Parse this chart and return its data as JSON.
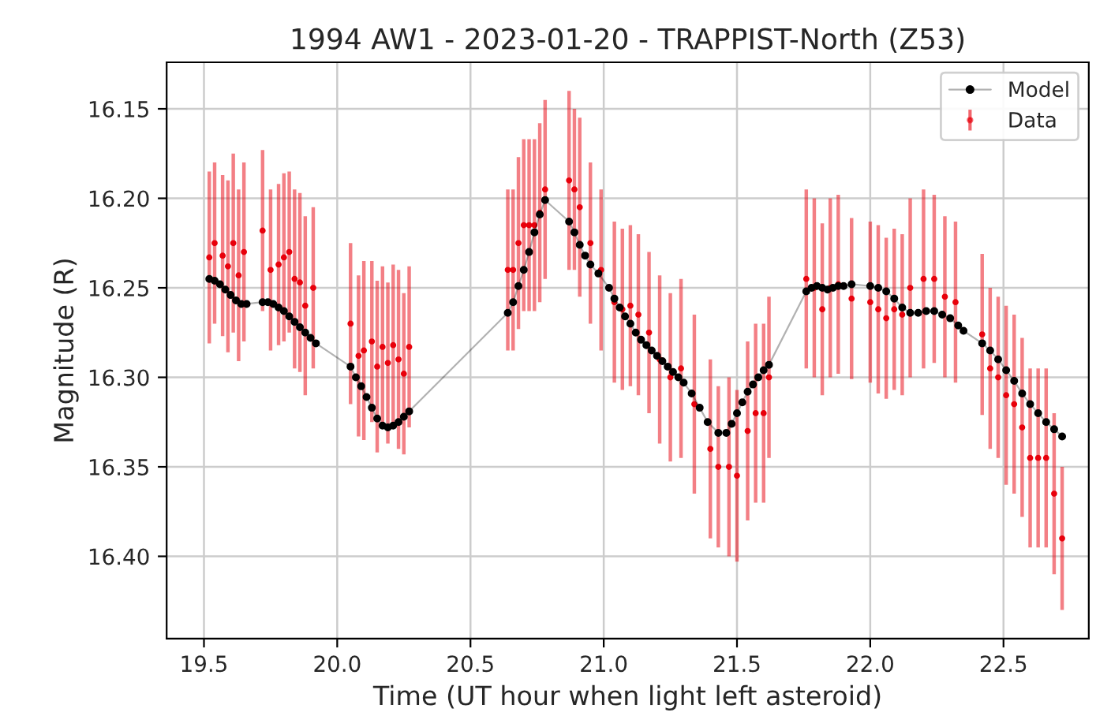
{
  "chart_data": {
    "type": "line",
    "title": "1994 AW1 - 2023-01-20 - TRAPPIST-North (Z53)",
    "xlabel": "Time (UT hour when light left asteroid)",
    "ylabel": "Magnitude (R)",
    "xlim": [
      19.36,
      22.82
    ],
    "ylim": [
      16.446,
      16.124
    ],
    "xticks": [
      {
        "value": 19.5,
        "label": "19.5"
      },
      {
        "value": 20.0,
        "label": "20.0"
      },
      {
        "value": 20.5,
        "label": "20.5"
      },
      {
        "value": 21.0,
        "label": "21.0"
      },
      {
        "value": 21.5,
        "label": "21.5"
      },
      {
        "value": 22.0,
        "label": "22.0"
      },
      {
        "value": 22.5,
        "label": "22.5"
      }
    ],
    "yticks": [
      16.15,
      {
        "value": 16.2,
        "label": "16.20"
      },
      16.25,
      {
        "value": 16.3,
        "label": "16.30"
      },
      16.35,
      {
        "value": 16.4,
        "label": "16.40"
      }
    ],
    "grid": true,
    "legend": "top right",
    "series": [
      {
        "name": "Model",
        "color": "#000000",
        "marker": "circle",
        "x": [
          19.52,
          19.54,
          19.56,
          19.58,
          19.6,
          19.62,
          19.64,
          19.66,
          19.72,
          19.74,
          19.76,
          19.78,
          19.8,
          19.82,
          19.84,
          19.86,
          19.88,
          19.9,
          19.92,
          20.05,
          20.07,
          20.09,
          20.11,
          20.13,
          20.15,
          20.17,
          20.19,
          20.21,
          20.23,
          20.25,
          20.27,
          20.64,
          20.66,
          20.68,
          20.7,
          20.72,
          20.74,
          20.76,
          20.78,
          20.87,
          20.89,
          20.91,
          20.93,
          20.95,
          20.98,
          21.02,
          21.04,
          21.06,
          21.08,
          21.1,
          21.12,
          21.14,
          21.16,
          21.18,
          21.2,
          21.22,
          21.24,
          21.26,
          21.28,
          21.3,
          21.33,
          21.36,
          21.39,
          21.43,
          21.46,
          21.48,
          21.5,
          21.52,
          21.54,
          21.56,
          21.58,
          21.6,
          21.62,
          21.76,
          21.78,
          21.8,
          21.82,
          21.84,
          21.86,
          21.88,
          21.9,
          21.93,
          22.0,
          22.03,
          22.06,
          22.09,
          22.12,
          22.15,
          22.18,
          22.21,
          22.24,
          22.27,
          22.3,
          22.33,
          22.35,
          22.42,
          22.45,
          22.48,
          22.51,
          22.54,
          22.57,
          22.6,
          22.63,
          22.66,
          22.69,
          22.72
        ],
        "values": [
          16.245,
          16.246,
          16.248,
          16.251,
          16.254,
          16.257,
          16.259,
          16.259,
          16.258,
          16.258,
          16.259,
          16.261,
          16.263,
          16.266,
          16.269,
          16.272,
          16.275,
          16.278,
          16.281,
          16.294,
          16.3,
          16.305,
          16.311,
          16.317,
          16.323,
          16.327,
          16.328,
          16.327,
          16.325,
          16.322,
          16.319,
          16.264,
          16.258,
          16.249,
          16.24,
          16.23,
          16.219,
          16.209,
          16.201,
          16.213,
          16.219,
          16.226,
          16.232,
          16.237,
          16.242,
          16.25,
          16.256,
          16.261,
          16.266,
          16.27,
          16.275,
          16.279,
          16.282,
          16.285,
          16.288,
          16.291,
          16.294,
          16.297,
          16.3,
          16.303,
          16.309,
          16.317,
          16.325,
          16.331,
          16.331,
          16.326,
          16.32,
          16.314,
          16.308,
          16.304,
          16.3,
          16.296,
          16.293,
          16.252,
          16.25,
          16.249,
          16.25,
          16.251,
          16.25,
          16.249,
          16.249,
          16.248,
          16.249,
          16.25,
          16.252,
          16.256,
          16.261,
          16.264,
          16.264,
          16.263,
          16.263,
          16.265,
          16.267,
          16.271,
          16.274,
          16.281,
          16.285,
          16.29,
          16.296,
          16.302,
          16.309,
          16.315,
          16.32,
          16.325,
          16.329,
          16.333
        ]
      },
      {
        "name": "Data",
        "type": "scatter",
        "color": "#e8000b",
        "marker": "circle",
        "x": [
          19.52,
          19.54,
          19.57,
          19.59,
          19.61,
          19.63,
          19.65,
          19.72,
          19.75,
          19.78,
          19.8,
          19.82,
          19.84,
          19.86,
          19.88,
          19.91,
          20.05,
          20.08,
          20.1,
          20.13,
          20.15,
          20.17,
          20.19,
          20.21,
          20.23,
          20.25,
          20.27,
          20.64,
          20.66,
          20.68,
          20.7,
          20.72,
          20.74,
          20.76,
          20.78,
          20.87,
          20.89,
          20.91,
          20.95,
          20.99,
          21.04,
          21.07,
          21.1,
          21.13,
          21.17,
          21.21,
          21.25,
          21.29,
          21.34,
          21.4,
          21.43,
          21.47,
          21.5,
          21.54,
          21.57,
          21.6,
          21.62,
          21.76,
          21.79,
          21.82,
          21.85,
          21.88,
          21.93,
          22.0,
          22.03,
          22.06,
          22.09,
          22.12,
          22.15,
          22.2,
          22.24,
          22.28,
          22.32,
          22.42,
          22.45,
          22.48,
          22.51,
          22.54,
          22.57,
          22.6,
          22.63,
          22.66,
          22.69,
          22.72
        ],
        "values": [
          16.233,
          16.225,
          16.232,
          16.238,
          16.225,
          16.243,
          16.23,
          16.218,
          16.24,
          16.237,
          16.233,
          16.23,
          16.245,
          16.247,
          16.26,
          16.25,
          16.27,
          16.288,
          16.285,
          16.28,
          16.294,
          16.283,
          16.292,
          16.282,
          16.29,
          16.298,
          16.283,
          16.24,
          16.24,
          16.225,
          16.215,
          16.215,
          16.215,
          16.208,
          16.195,
          16.19,
          16.195,
          16.205,
          16.225,
          16.24,
          16.258,
          16.262,
          16.26,
          16.265,
          16.275,
          16.29,
          16.3,
          16.295,
          16.315,
          16.34,
          16.35,
          16.35,
          16.355,
          16.33,
          16.32,
          16.32,
          16.3,
          16.245,
          16.25,
          16.262,
          16.25,
          16.248,
          16.256,
          16.258,
          16.262,
          16.267,
          16.262,
          16.265,
          16.25,
          16.245,
          16.245,
          16.255,
          16.258,
          16.276,
          16.295,
          16.3,
          16.31,
          16.315,
          16.328,
          16.345,
          16.345,
          16.345,
          16.365,
          16.39
        ],
        "errors": [
          0.048,
          0.045,
          0.045,
          0.048,
          0.05,
          0.048,
          0.05,
          0.045,
          0.045,
          0.045,
          0.047,
          0.045,
          0.05,
          0.05,
          0.05,
          0.045,
          0.045,
          0.045,
          0.05,
          0.045,
          0.048,
          0.045,
          0.045,
          0.045,
          0.05,
          0.045,
          0.045,
          0.045,
          0.045,
          0.048,
          0.048,
          0.048,
          0.048,
          0.05,
          0.05,
          0.05,
          0.045,
          0.05,
          0.045,
          0.045,
          0.045,
          0.045,
          0.045,
          0.045,
          0.045,
          0.047,
          0.047,
          0.05,
          0.05,
          0.05,
          0.045,
          0.05,
          0.048,
          0.05,
          0.05,
          0.05,
          0.045,
          0.05,
          0.05,
          0.048,
          0.05,
          0.05,
          0.045,
          0.045,
          0.047,
          0.045,
          0.045,
          0.045,
          0.05,
          0.05,
          0.047,
          0.045,
          0.045,
          0.045,
          0.045,
          0.045,
          0.05,
          0.05,
          0.05,
          0.05,
          0.05,
          0.05,
          0.045,
          0.04
        ]
      }
    ]
  }
}
